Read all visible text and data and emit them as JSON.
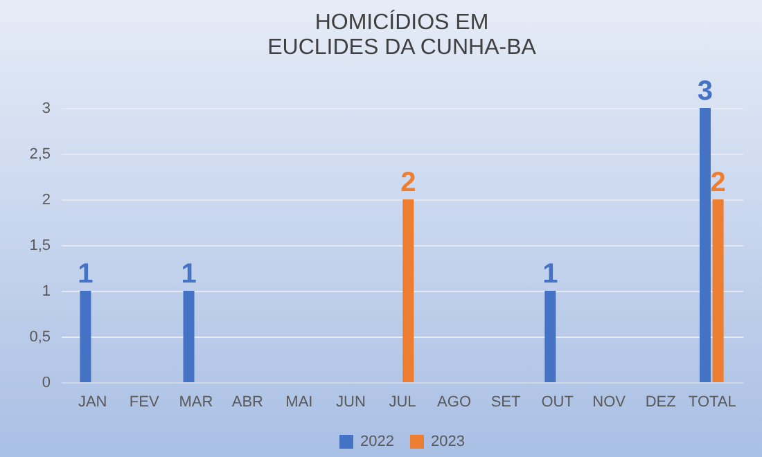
{
  "chart_data": {
    "type": "bar",
    "title": "HOMICÍDIOS EM EUCLIDES DA CUNHA-BA",
    "categories": [
      "JAN",
      "FEV",
      "MAR",
      "ABR",
      "MAI",
      "JUN",
      "JUL",
      "AGO",
      "SET",
      "OUT",
      "NOV",
      "DEZ",
      "TOTAL"
    ],
    "series": [
      {
        "name": "2022",
        "color": "#4472c4",
        "values": [
          1,
          0,
          1,
          0,
          0,
          0,
          0,
          0,
          0,
          1,
          0,
          0,
          3
        ],
        "value_labels": [
          "1",
          null,
          "1",
          null,
          null,
          null,
          null,
          null,
          null,
          "1",
          null,
          null,
          "3"
        ]
      },
      {
        "name": "2023",
        "color": "#ed7d31",
        "values": [
          0,
          0,
          0,
          0,
          0,
          0,
          2,
          0,
          0,
          0,
          0,
          0,
          2
        ],
        "value_labels": [
          null,
          null,
          null,
          null,
          null,
          null,
          "2",
          null,
          null,
          null,
          null,
          null,
          "2"
        ]
      }
    ],
    "ylim": [
      0,
      3
    ],
    "yticks": [
      0,
      {
        "value": 0.5,
        "label": "0,5"
      },
      1,
      {
        "value": 1.5,
        "label": "1,5"
      },
      2,
      {
        "value": 2.5,
        "label": "2,5"
      },
      3
    ],
    "grid": "y",
    "legend": "bottom"
  }
}
